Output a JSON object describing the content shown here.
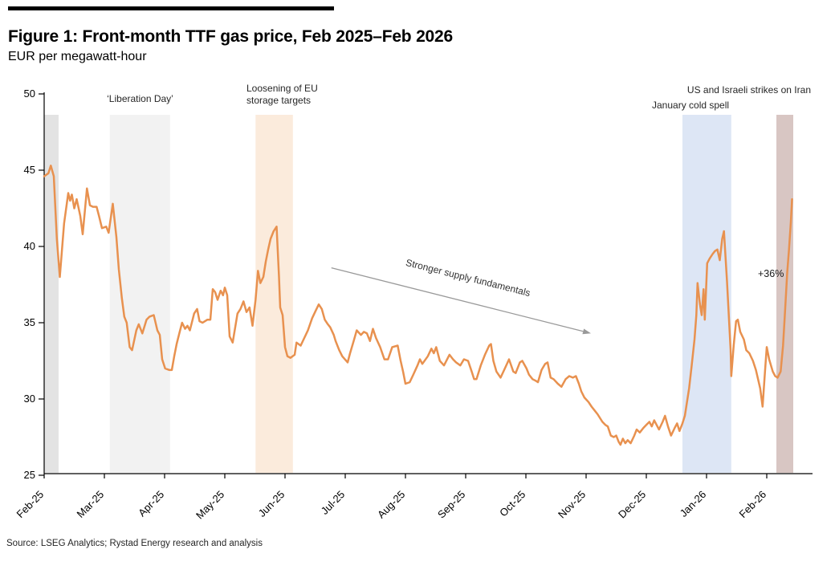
{
  "figure": {
    "title": "Figure 1: Front-month TTF gas price, Feb 2025–Feb 2026",
    "subtitle": "EUR per megawatt-hour",
    "source": "Source: LSEG Analytics; Rystad Energy research and analysis"
  },
  "chart_data": {
    "type": "line",
    "title": "Front-month TTF gas price, Feb 2025–Feb 2026",
    "ylabel": "EUR per megawatt-hour",
    "grid": false,
    "legend": "none",
    "x_axis": {
      "unit": "months since Feb-25 tick",
      "tick_labels": [
        "Feb-25",
        "Mar-25",
        "Apr-25",
        "May-25",
        "Jun-25",
        "Jul-25",
        "Aug-25",
        "Sep-25",
        "Oct-25",
        "Nov-25",
        "Dec-25",
        "Jan-26",
        "Feb-26"
      ],
      "xlim": [
        0,
        12.75
      ]
    },
    "y_axis": {
      "min": 25,
      "max": 50,
      "ticks": [
        25,
        30,
        35,
        40,
        45,
        50
      ]
    },
    "series": [
      {
        "name": "Front-month TTF gas price",
        "color": "#E8914F",
        "points": [
          [
            0.0,
            44.6
          ],
          [
            0.07,
            44.8
          ],
          [
            0.11,
            45.3
          ],
          [
            0.16,
            44.6
          ],
          [
            0.21,
            40.5
          ],
          [
            0.26,
            38.0
          ],
          [
            0.33,
            41.5
          ],
          [
            0.4,
            43.5
          ],
          [
            0.43,
            43.0
          ],
          [
            0.46,
            43.4
          ],
          [
            0.5,
            42.5
          ],
          [
            0.54,
            43.1
          ],
          [
            0.6,
            42.0
          ],
          [
            0.64,
            40.8
          ],
          [
            0.71,
            43.8
          ],
          [
            0.76,
            42.7
          ],
          [
            0.81,
            42.6
          ],
          [
            0.87,
            42.6
          ],
          [
            0.91,
            42.0
          ],
          [
            0.96,
            41.2
          ],
          [
            1.03,
            41.3
          ],
          [
            1.07,
            40.9
          ],
          [
            1.14,
            42.8
          ],
          [
            1.2,
            40.6
          ],
          [
            1.24,
            38.5
          ],
          [
            1.29,
            36.6
          ],
          [
            1.33,
            35.4
          ],
          [
            1.37,
            35.0
          ],
          [
            1.42,
            33.4
          ],
          [
            1.46,
            33.2
          ],
          [
            1.53,
            34.5
          ],
          [
            1.57,
            34.9
          ],
          [
            1.63,
            34.3
          ],
          [
            1.7,
            35.2
          ],
          [
            1.75,
            35.4
          ],
          [
            1.82,
            35.5
          ],
          [
            1.88,
            34.5
          ],
          [
            1.92,
            34.2
          ],
          [
            1.96,
            32.6
          ],
          [
            2.01,
            32.0
          ],
          [
            2.08,
            31.9
          ],
          [
            2.12,
            31.9
          ],
          [
            2.16,
            32.8
          ],
          [
            2.2,
            33.6
          ],
          [
            2.25,
            34.4
          ],
          [
            2.29,
            35.0
          ],
          [
            2.34,
            34.6
          ],
          [
            2.38,
            34.8
          ],
          [
            2.42,
            34.5
          ],
          [
            2.49,
            35.6
          ],
          [
            2.54,
            35.9
          ],
          [
            2.58,
            35.1
          ],
          [
            2.63,
            35.0
          ],
          [
            2.71,
            35.2
          ],
          [
            2.76,
            35.2
          ],
          [
            2.8,
            37.2
          ],
          [
            2.84,
            37.0
          ],
          [
            2.88,
            36.5
          ],
          [
            2.93,
            37.1
          ],
          [
            2.97,
            36.8
          ],
          [
            3.0,
            37.3
          ],
          [
            3.04,
            36.8
          ],
          [
            3.08,
            34.1
          ],
          [
            3.13,
            33.7
          ],
          [
            3.21,
            35.6
          ],
          [
            3.26,
            35.9
          ],
          [
            3.31,
            36.4
          ],
          [
            3.36,
            35.7
          ],
          [
            3.41,
            36.0
          ],
          [
            3.46,
            34.8
          ],
          [
            3.51,
            36.5
          ],
          [
            3.55,
            38.4
          ],
          [
            3.59,
            37.6
          ],
          [
            3.64,
            38.0
          ],
          [
            3.68,
            39.0
          ],
          [
            3.72,
            39.8
          ],
          [
            3.76,
            40.5
          ],
          [
            3.81,
            41.0
          ],
          [
            3.86,
            41.3
          ],
          [
            3.9,
            38.0
          ],
          [
            3.92,
            36.0
          ],
          [
            3.96,
            35.5
          ],
          [
            4.0,
            33.4
          ],
          [
            4.04,
            32.8
          ],
          [
            4.09,
            32.7
          ],
          [
            4.16,
            32.9
          ],
          [
            4.19,
            33.7
          ],
          [
            4.26,
            33.5
          ],
          [
            4.32,
            34.0
          ],
          [
            4.38,
            34.5
          ],
          [
            4.45,
            35.3
          ],
          [
            4.51,
            35.8
          ],
          [
            4.56,
            36.2
          ],
          [
            4.61,
            35.9
          ],
          [
            4.66,
            35.2
          ],
          [
            4.71,
            34.9
          ],
          [
            4.75,
            34.7
          ],
          [
            4.81,
            34.2
          ],
          [
            4.84,
            33.8
          ],
          [
            4.9,
            33.2
          ],
          [
            4.95,
            32.8
          ],
          [
            5.04,
            32.4
          ],
          [
            5.08,
            33.0
          ],
          [
            5.14,
            33.8
          ],
          [
            5.19,
            34.5
          ],
          [
            5.26,
            34.2
          ],
          [
            5.31,
            34.4
          ],
          [
            5.36,
            34.3
          ],
          [
            5.41,
            33.8
          ],
          [
            5.46,
            34.6
          ],
          [
            5.51,
            34.0
          ],
          [
            5.58,
            33.4
          ],
          [
            5.65,
            32.6
          ],
          [
            5.71,
            32.6
          ],
          [
            5.78,
            33.4
          ],
          [
            5.87,
            33.5
          ],
          [
            5.92,
            32.5
          ],
          [
            5.96,
            31.8
          ],
          [
            6.0,
            31.0
          ],
          [
            6.07,
            31.1
          ],
          [
            6.13,
            31.6
          ],
          [
            6.2,
            32.2
          ],
          [
            6.24,
            32.6
          ],
          [
            6.28,
            32.3
          ],
          [
            6.37,
            32.8
          ],
          [
            6.43,
            33.3
          ],
          [
            6.47,
            33.0
          ],
          [
            6.51,
            33.4
          ],
          [
            6.57,
            32.5
          ],
          [
            6.64,
            32.2
          ],
          [
            6.73,
            32.9
          ],
          [
            6.79,
            32.6
          ],
          [
            6.84,
            32.4
          ],
          [
            6.91,
            32.2
          ],
          [
            6.97,
            32.6
          ],
          [
            7.04,
            32.5
          ],
          [
            7.1,
            31.8
          ],
          [
            7.14,
            31.3
          ],
          [
            7.18,
            31.3
          ],
          [
            7.25,
            32.2
          ],
          [
            7.32,
            32.9
          ],
          [
            7.39,
            33.5
          ],
          [
            7.42,
            33.6
          ],
          [
            7.46,
            32.5
          ],
          [
            7.51,
            31.8
          ],
          [
            7.58,
            31.4
          ],
          [
            7.65,
            32.0
          ],
          [
            7.72,
            32.6
          ],
          [
            7.79,
            31.8
          ],
          [
            7.83,
            31.7
          ],
          [
            7.9,
            32.4
          ],
          [
            7.94,
            32.5
          ],
          [
            8.01,
            32.0
          ],
          [
            8.05,
            31.6
          ],
          [
            8.11,
            31.3
          ],
          [
            8.16,
            31.2
          ],
          [
            8.2,
            31.1
          ],
          [
            8.26,
            31.9
          ],
          [
            8.32,
            32.3
          ],
          [
            8.36,
            32.4
          ],
          [
            8.41,
            31.4
          ],
          [
            8.46,
            31.3
          ],
          [
            8.53,
            31.0
          ],
          [
            8.59,
            30.8
          ],
          [
            8.66,
            31.3
          ],
          [
            8.72,
            31.5
          ],
          [
            8.78,
            31.4
          ],
          [
            8.83,
            31.5
          ],
          [
            8.88,
            31.0
          ],
          [
            8.92,
            30.5
          ],
          [
            8.97,
            30.1
          ],
          [
            9.04,
            29.8
          ],
          [
            9.09,
            29.5
          ],
          [
            9.15,
            29.2
          ],
          [
            9.19,
            29.0
          ],
          [
            9.27,
            28.5
          ],
          [
            9.32,
            28.3
          ],
          [
            9.36,
            28.2
          ],
          [
            9.41,
            27.6
          ],
          [
            9.46,
            27.5
          ],
          [
            9.5,
            27.6
          ],
          [
            9.54,
            27.2
          ],
          [
            9.57,
            27.0
          ],
          [
            9.61,
            27.4
          ],
          [
            9.65,
            27.1
          ],
          [
            9.69,
            27.3
          ],
          [
            9.74,
            27.1
          ],
          [
            9.8,
            27.6
          ],
          [
            9.84,
            28.0
          ],
          [
            9.89,
            27.8
          ],
          [
            9.95,
            28.1
          ],
          [
            10.0,
            28.3
          ],
          [
            10.05,
            28.5
          ],
          [
            10.09,
            28.2
          ],
          [
            10.13,
            28.6
          ],
          [
            10.17,
            28.3
          ],
          [
            10.21,
            28.0
          ],
          [
            10.27,
            28.5
          ],
          [
            10.31,
            28.9
          ],
          [
            10.36,
            28.2
          ],
          [
            10.41,
            27.6
          ],
          [
            10.47,
            28.1
          ],
          [
            10.51,
            28.4
          ],
          [
            10.55,
            27.9
          ],
          [
            10.6,
            28.4
          ],
          [
            10.64,
            28.9
          ],
          [
            10.71,
            30.7
          ],
          [
            10.75,
            32.1
          ],
          [
            10.8,
            33.9
          ],
          [
            10.83,
            35.5
          ],
          [
            10.85,
            37.6
          ],
          [
            10.89,
            36.2
          ],
          [
            10.92,
            35.5
          ],
          [
            10.95,
            37.2
          ],
          [
            10.97,
            35.2
          ],
          [
            11.01,
            38.9
          ],
          [
            11.05,
            39.2
          ],
          [
            11.1,
            39.5
          ],
          [
            11.14,
            39.7
          ],
          [
            11.18,
            39.8
          ],
          [
            11.22,
            39.1
          ],
          [
            11.26,
            40.5
          ],
          [
            11.29,
            41.0
          ],
          [
            11.32,
            39.0
          ],
          [
            11.34,
            37.7
          ],
          [
            11.37,
            35.5
          ],
          [
            11.4,
            33.2
          ],
          [
            11.41,
            31.5
          ],
          [
            11.45,
            33.5
          ],
          [
            11.49,
            35.1
          ],
          [
            11.52,
            35.2
          ],
          [
            11.56,
            34.4
          ],
          [
            11.62,
            33.9
          ],
          [
            11.66,
            33.2
          ],
          [
            11.71,
            33.0
          ],
          [
            11.77,
            32.5
          ],
          [
            11.82,
            31.9
          ],
          [
            11.89,
            30.7
          ],
          [
            11.93,
            29.5
          ],
          [
            11.97,
            31.8
          ],
          [
            12.0,
            33.4
          ],
          [
            12.04,
            32.6
          ],
          [
            12.1,
            31.8
          ],
          [
            12.14,
            31.5
          ],
          [
            12.18,
            31.4
          ],
          [
            12.23,
            31.8
          ],
          [
            12.27,
            33.5
          ],
          [
            12.3,
            35.5
          ],
          [
            12.34,
            38.3
          ],
          [
            12.37,
            39.8
          ],
          [
            12.4,
            41.6
          ],
          [
            12.42,
            43.1
          ]
        ]
      }
    ],
    "bands": [
      {
        "id": "feb-start",
        "x0": 0.0,
        "x1": 0.24,
        "color": "#E3E3E3",
        "label": ""
      },
      {
        "id": "liberation-day",
        "x0": 1.09,
        "x1": 2.09,
        "color": "#F2F2F2",
        "label": "‘Liberation Day’"
      },
      {
        "id": "eu-storage",
        "x0": 3.51,
        "x1": 4.13,
        "color": "#FBEBDC",
        "label": "Loosening of EU storage targets"
      },
      {
        "id": "jan-cold-spell",
        "x0": 10.6,
        "x1": 11.41,
        "color": "#DDE6F5",
        "label": "January cold spell"
      },
      {
        "id": "iran-strikes",
        "x0": 12.16,
        "x1": 12.44,
        "color": "#D8C6C3",
        "label": "US and Israeli strikes on Iran"
      }
    ],
    "annotations": {
      "arrow": {
        "text": "Stronger supply fundamentals",
        "from": [
          4.77,
          38.6
        ],
        "to": [
          9.08,
          34.3
        ],
        "color": "#999999"
      },
      "pct_label": {
        "text": "+36%",
        "x": 12.1,
        "y": 38.2
      }
    }
  }
}
